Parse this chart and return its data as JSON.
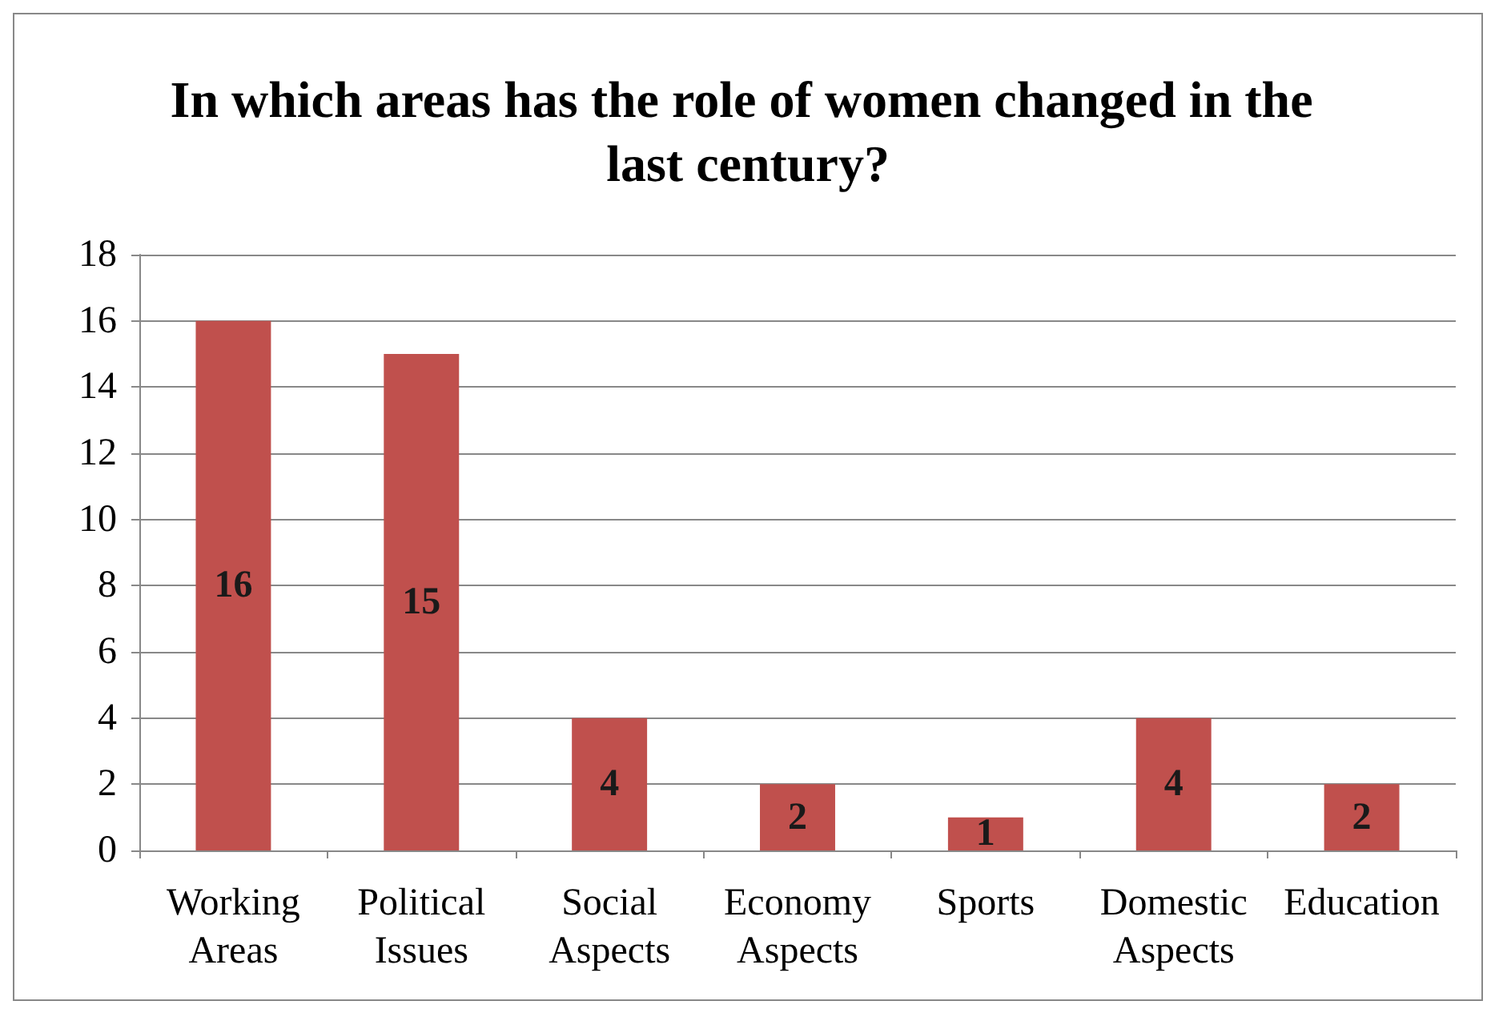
{
  "chart_data": {
    "type": "bar",
    "title": "In which areas has the role of women changed in the last century?",
    "categories": [
      "Working Areas",
      "Political Issues",
      "Social Aspects",
      "Economy Aspects",
      "Sports",
      "Domestic Aspects",
      "Education"
    ],
    "values": [
      16,
      15,
      4,
      2,
      1,
      4,
      2
    ],
    "color": "#c0504d",
    "ylim": [
      0,
      18
    ],
    "yticks": [
      0,
      2,
      4,
      6,
      8,
      10,
      12,
      14,
      16,
      18
    ],
    "grid": "y",
    "data_labels": true
  }
}
